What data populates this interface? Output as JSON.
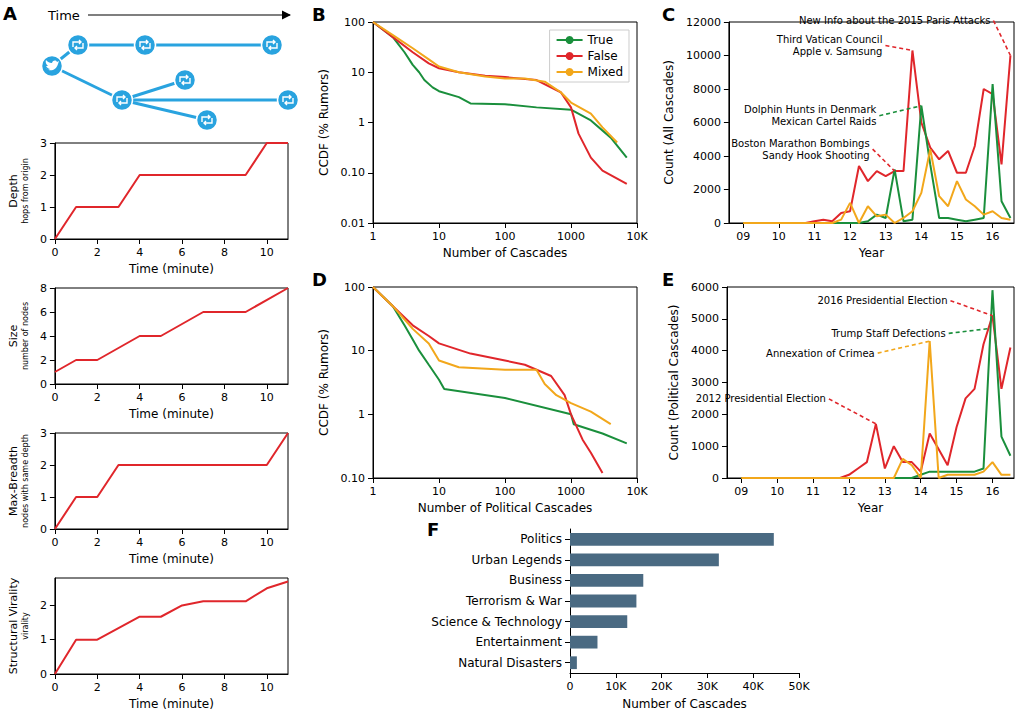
{
  "chart_data": [
    {
      "type": "diagram",
      "title": "A",
      "annotations": [
        "Time"
      ]
    },
    {
      "type": "line",
      "ylabel": "Depth",
      "ylabel_unit": "hops from origin",
      "xlabel": "Time (minute)",
      "x": [
        0,
        1,
        3,
        4,
        9,
        10,
        11
      ],
      "values": [
        0,
        1,
        1,
        2,
        2,
        3,
        3
      ],
      "color": "#e0262b",
      "xlim": [
        0,
        11
      ],
      "xticks": [
        0,
        2,
        4,
        6,
        8,
        10
      ],
      "ylim": [
        0,
        3
      ],
      "yticks": [
        0,
        1,
        2,
        3
      ],
      "grid": false
    },
    {
      "type": "line",
      "ylabel": "Size",
      "ylabel_unit": "number of nodes",
      "xlabel": "Time (minute)",
      "x": [
        0,
        1,
        2,
        4,
        5,
        7,
        9,
        11
      ],
      "values": [
        1,
        2,
        2,
        4,
        4,
        6,
        6,
        8
      ],
      "color": "#e0262b",
      "xlim": [
        0,
        11
      ],
      "xticks": [
        0,
        2,
        4,
        6,
        8,
        10
      ],
      "ylim": [
        0,
        8
      ],
      "yticks": [
        0,
        2,
        4,
        6,
        8
      ],
      "grid": false
    },
    {
      "type": "line",
      "ylabel": "Max-Breadth",
      "ylabel_unit": "nodes with same depth",
      "xlabel": "Time (minute)",
      "x": [
        0,
        1,
        2,
        3,
        10,
        11
      ],
      "values": [
        0,
        1,
        1,
        2,
        2,
        3
      ],
      "color": "#e0262b",
      "xlim": [
        0,
        11
      ],
      "xticks": [
        0,
        2,
        4,
        6,
        8,
        10
      ],
      "ylim": [
        0,
        3
      ],
      "yticks": [
        0,
        1,
        2,
        3
      ],
      "grid": false
    },
    {
      "type": "line",
      "ylabel": "Structural Virality",
      "ylabel_unit": "virality",
      "xlabel": "Time (minute)",
      "x": [
        0,
        1,
        2,
        4,
        5,
        6,
        7,
        9,
        10,
        11
      ],
      "values": [
        0,
        1,
        1,
        1.67,
        1.67,
        2,
        2.12,
        2.12,
        2.5,
        2.7
      ],
      "color": "#e0262b",
      "xlim": [
        0,
        11
      ],
      "xticks": [
        0,
        2,
        4,
        6,
        8,
        10
      ],
      "ylim": [
        0,
        2.8
      ],
      "yticks": [
        0,
        1,
        2
      ],
      "grid": false
    },
    {
      "type": "line",
      "title": "B",
      "log": true,
      "xlabel": "Number of Cascades",
      "ylabel": "CCDF (% Rumors)",
      "xlim": [
        1,
        10000
      ],
      "xticks": [
        1,
        10,
        100,
        1000,
        {
          "value": 10000,
          "label": "10K"
        }
      ],
      "ylim": [
        0.01,
        100
      ],
      "yticks": [
        0.01,
        {
          "value": 0.1,
          "label": "0.10"
        },
        1,
        10,
        100
      ],
      "legend": "upper right",
      "grid": false,
      "series": [
        {
          "name": "True",
          "color": "#1a8f3c",
          "x": [
            1,
            2,
            3,
            4,
            5,
            6,
            8,
            10,
            20,
            30,
            100,
            300,
            1000,
            2000,
            4000,
            7000
          ],
          "values": [
            100,
            50,
            25,
            14,
            10,
            7,
            5,
            4.2,
            3.2,
            2.4,
            2.3,
            2.0,
            1.8,
            1.1,
            0.5,
            0.2
          ]
        },
        {
          "name": "False",
          "color": "#e0262b",
          "x": [
            1,
            2,
            4,
            7,
            10,
            20,
            50,
            100,
            300,
            700,
            1000,
            1300,
            2000,
            3000,
            7000
          ],
          "values": [
            100,
            50,
            25,
            15,
            12,
            10,
            8.5,
            8,
            7,
            4,
            2,
            0.6,
            0.2,
            0.11,
            0.06
          ]
        },
        {
          "name": "Mixed",
          "color": "#f2a71b",
          "x": [
            1,
            2,
            4,
            7,
            10,
            20,
            50,
            100,
            200,
            400,
            700,
            1000,
            2000,
            3000,
            5000
          ],
          "values": [
            100,
            55,
            30,
            18,
            13,
            10,
            8.2,
            7.5,
            7.5,
            6.5,
            4,
            2.5,
            1.5,
            0.8,
            0.4
          ]
        }
      ]
    },
    {
      "type": "line",
      "title": "C",
      "xlabel": "Year",
      "ylabel": "Count (All Cascades)",
      "xlim": [
        2008.6,
        2016.6
      ],
      "xticks": [
        {
          "value": 2009,
          "label": "09"
        },
        {
          "value": 2010,
          "label": "10"
        },
        {
          "value": 2011,
          "label": "11"
        },
        {
          "value": 2012,
          "label": "12"
        },
        {
          "value": 2013,
          "label": "13"
        },
        {
          "value": 2014,
          "label": "14"
        },
        {
          "value": 2015,
          "label": "15"
        },
        {
          "value": 2016,
          "label": "16"
        }
      ],
      "ylim": [
        0,
        12000
      ],
      "yticks": [
        0,
        2000,
        4000,
        6000,
        8000,
        10000,
        12000
      ],
      "grid": false,
      "x": [
        2009,
        2009.25,
        2009.5,
        2009.75,
        2010,
        2010.25,
        2010.5,
        2010.75,
        2011,
        2011.25,
        2011.5,
        2011.75,
        2012,
        2012.25,
        2012.5,
        2012.75,
        2013,
        2013.25,
        2013.5,
        2013.75,
        2014,
        2014.25,
        2014.5,
        2014.75,
        2015,
        2015.25,
        2015.5,
        2015.75,
        2016,
        2016.25,
        2016.5
      ],
      "series": [
        {
          "name": "False",
          "color": "#e0262b",
          "values": [
            0,
            0,
            0,
            0,
            0,
            0,
            0,
            0,
            100,
            200,
            100,
            600,
            700,
            3400,
            2500,
            3100,
            2800,
            3100,
            3100,
            10300,
            6000,
            4500,
            3800,
            4300,
            3000,
            3000,
            4600,
            8000,
            7700,
            3500,
            10000
          ]
        },
        {
          "name": "True",
          "color": "#1a8f3c",
          "values": [
            0,
            0,
            0,
            0,
            0,
            0,
            0,
            0,
            0,
            0,
            0,
            0,
            0,
            0,
            100,
            500,
            300,
            3200,
            100,
            200,
            7000,
            3500,
            300,
            300,
            200,
            100,
            200,
            300,
            8300,
            1300,
            300
          ]
        },
        {
          "name": "Mixed",
          "color": "#f2a71b",
          "values": [
            0,
            0,
            0,
            0,
            0,
            0,
            0,
            0,
            0,
            0,
            0,
            200,
            1200,
            0,
            1000,
            400,
            500,
            0,
            300,
            700,
            1800,
            4400,
            1600,
            1000,
            2500,
            1400,
            1000,
            500,
            700,
            300,
            200
          ]
        }
      ],
      "annotations": [
        {
          "text": [
            "New Info about the 2015 Paris Attacks"
          ],
          "x": 2016.5,
          "y": 10000,
          "color": "#e0262b"
        },
        {
          "text": [
            "Third Vatican Council",
            "Apple v. Samsung"
          ],
          "x": 2013.75,
          "y": 10300,
          "color": "#e0262b"
        },
        {
          "text": [
            "Dolphin Hunts in Denmark",
            "Mexican Cartel Raids"
          ],
          "x": 2014,
          "y": 7000,
          "color": "#1a8f3c"
        },
        {
          "text": [
            "Boston Marathon Bombings",
            "Sandy Hook Shooting"
          ],
          "x": 2013.25,
          "y": 3100,
          "color": "#e0262b"
        }
      ]
    },
    {
      "type": "line",
      "title": "D",
      "log": true,
      "xlabel": "Number of Political Cascades",
      "ylabel": "CCDF (% Rumors)",
      "xlim": [
        1,
        10000
      ],
      "xticks": [
        1,
        10,
        100,
        1000,
        {
          "value": 10000,
          "label": "10K"
        }
      ],
      "ylim": [
        0.1,
        100
      ],
      "yticks": [
        {
          "value": 0.1,
          "label": "0.10"
        },
        1,
        10,
        100
      ],
      "grid": false,
      "series": [
        {
          "name": "True",
          "color": "#1a8f3c",
          "x": [
            1,
            2,
            3,
            4,
            5,
            7,
            10,
            12,
            100,
            1000,
            1100,
            3000,
            7000
          ],
          "values": [
            100,
            50,
            25,
            15,
            10,
            6,
            3.5,
            2.5,
            1.8,
            1.0,
            0.7,
            0.5,
            0.35
          ]
        },
        {
          "name": "False",
          "color": "#e0262b",
          "x": [
            1,
            2,
            4,
            7,
            10,
            30,
            100,
            200,
            500,
            800,
            1000,
            1500,
            2000,
            3000
          ],
          "values": [
            100,
            50,
            25,
            17,
            13,
            9,
            7,
            6,
            4,
            2,
            1,
            0.4,
            0.25,
            0.12
          ]
        },
        {
          "name": "Mixed",
          "color": "#f2a71b",
          "x": [
            1,
            2,
            4,
            7,
            10,
            20,
            100,
            300,
            400,
            600,
            1000,
            2000,
            4000
          ],
          "values": [
            100,
            50,
            22,
            13,
            7,
            5.5,
            5,
            5,
            3,
            2,
            1.5,
            1.1,
            0.7
          ]
        }
      ]
    },
    {
      "type": "line",
      "title": "E",
      "xlabel": "Year",
      "ylabel": "Count (Political Cascades)",
      "xlim": [
        2008.6,
        2016.6
      ],
      "xticks": [
        {
          "value": 2009,
          "label": "09"
        },
        {
          "value": 2010,
          "label": "10"
        },
        {
          "value": 2011,
          "label": "11"
        },
        {
          "value": 2012,
          "label": "12"
        },
        {
          "value": 2013,
          "label": "13"
        },
        {
          "value": 2014,
          "label": "14"
        },
        {
          "value": 2015,
          "label": "15"
        },
        {
          "value": 2016,
          "label": "16"
        }
      ],
      "ylim": [
        0,
        6000
      ],
      "yticks": [
        0,
        1000,
        2000,
        3000,
        4000,
        5000,
        6000
      ],
      "grid": false,
      "x": [
        2009,
        2009.25,
        2009.5,
        2009.75,
        2010,
        2010.25,
        2010.5,
        2010.75,
        2011,
        2011.25,
        2011.5,
        2011.75,
        2012,
        2012.25,
        2012.5,
        2012.75,
        2013,
        2013.25,
        2013.5,
        2013.75,
        2014,
        2014.25,
        2014.5,
        2014.75,
        2015,
        2015.25,
        2015.5,
        2015.75,
        2016,
        2016.25,
        2016.5
      ],
      "series": [
        {
          "name": "False",
          "color": "#e0262b",
          "values": [
            0,
            0,
            0,
            0,
            0,
            0,
            0,
            0,
            0,
            0,
            0,
            0,
            100,
            300,
            500,
            1700,
            300,
            1000,
            500,
            500,
            200,
            1400,
            900,
            400,
            1600,
            2500,
            2800,
            4200,
            5100,
            2800,
            4100
          ]
        },
        {
          "name": "True",
          "color": "#1a8f3c",
          "values": [
            0,
            0,
            0,
            0,
            0,
            0,
            0,
            0,
            0,
            0,
            0,
            0,
            0,
            0,
            0,
            0,
            0,
            0,
            0,
            0,
            100,
            200,
            200,
            200,
            200,
            200,
            200,
            300,
            5900,
            1300,
            700
          ]
        },
        {
          "name": "Mixed",
          "color": "#f2a71b",
          "values": [
            0,
            0,
            0,
            0,
            0,
            0,
            0,
            0,
            0,
            0,
            0,
            0,
            0,
            0,
            0,
            0,
            0,
            0,
            600,
            400,
            0,
            4300,
            0,
            100,
            100,
            100,
            100,
            200,
            500,
            100,
            100
          ]
        }
      ],
      "annotations": [
        {
          "text": [
            "2016 Presidential Election"
          ],
          "x": 2016,
          "y": 5100,
          "color": "#e0262b"
        },
        {
          "text": [
            "Trump Staff Defections"
          ],
          "x": 2015.95,
          "y": 4700,
          "color": "#1a8f3c"
        },
        {
          "text": [
            "Annexation of Crimea"
          ],
          "x": 2014.25,
          "y": 4300,
          "color": "#f2a71b"
        },
        {
          "text": [
            "2012 Presidential Election"
          ],
          "x": 2012.75,
          "y": 1700,
          "color": "#e0262b"
        }
      ]
    },
    {
      "type": "bar",
      "title": "F",
      "orientation": "horizontal",
      "xlabel": "Number of Cascades",
      "categories": [
        "Politics",
        "Urban Legends",
        "Business",
        "Terrorism & War",
        "Science & Technology",
        "Entertainment",
        "Natural Disasters"
      ],
      "values": [
        44500,
        32500,
        16000,
        14500,
        12500,
        6000,
        1500
      ],
      "color": "#4a6a82",
      "xlim": [
        0,
        50000
      ],
      "xticks": [
        0,
        {
          "value": 10000,
          "label": "10K"
        },
        {
          "value": 20000,
          "label": "20K"
        },
        {
          "value": 30000,
          "label": "30K"
        },
        {
          "value": 40000,
          "label": "40K"
        },
        {
          "value": 50000,
          "label": "50K"
        }
      ],
      "grid": false
    }
  ]
}
